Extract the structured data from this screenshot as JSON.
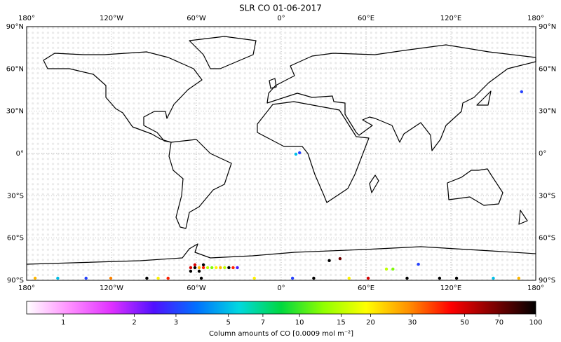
{
  "chart_data": {
    "type": "map",
    "title": "SLR CO 01-06-2017",
    "xlim": [
      -180,
      180
    ],
    "ylim": [
      -90,
      90
    ],
    "xticks": [
      {
        "value": -180,
        "label": "180°"
      },
      {
        "value": -120,
        "label": "120°W"
      },
      {
        "value": -60,
        "label": "60°W"
      },
      {
        "value": 0,
        "label": "0°"
      },
      {
        "value": 60,
        "label": "60°E"
      },
      {
        "value": 120,
        "label": "120°E"
      },
      {
        "value": 180,
        "label": "180°"
      }
    ],
    "yticks": [
      {
        "value": 90,
        "label": "90°N"
      },
      {
        "value": 60,
        "label": "60°N"
      },
      {
        "value": 30,
        "label": "30°N"
      },
      {
        "value": 0,
        "label": "0°"
      },
      {
        "value": -30,
        "label": "30°S"
      },
      {
        "value": -60,
        "label": "60°S"
      },
      {
        "value": -90,
        "label": "90°S"
      }
    ],
    "grid": true,
    "x": [
      -174,
      -158,
      -138,
      -120.5,
      -95,
      -87,
      -80,
      -56.5,
      -19,
      8,
      23,
      48,
      61.5,
      89,
      112,
      124,
      150,
      168,
      -64,
      -61,
      -58,
      -55,
      -52,
      -49,
      -46,
      -43,
      -40,
      -37,
      -34,
      -31,
      -64,
      -58,
      -61,
      -55,
      34,
      41.6,
      74.4,
      79,
      97,
      170,
      10.4,
      13
    ],
    "y": [
      -88.5,
      -88.5,
      -88.5,
      -88.5,
      -88.5,
      -88.5,
      -88.5,
      -88.5,
      -88.5,
      -88.5,
      -88.5,
      -88.5,
      -88.5,
      -88.5,
      -88.5,
      -88.5,
      -88.5,
      -88.5,
      -81,
      -81,
      -81,
      -81,
      -81,
      -81,
      -81,
      -81,
      -81,
      -81,
      -81,
      -81,
      -83.5,
      -83.5,
      -79,
      -79,
      -76,
      -74.6,
      -82,
      -82,
      -78.6,
      43.8,
      -0.5,
      0.5
    ],
    "values": [
      25,
      5,
      3,
      30,
      100,
      20,
      40,
      100,
      20,
      3,
      100,
      20,
      50,
      100,
      100,
      100,
      5,
      25,
      50,
      100,
      25,
      40,
      15,
      12,
      20,
      25,
      15,
      100,
      40,
      2.5,
      100,
      100,
      50,
      100,
      100,
      70,
      15,
      12,
      3,
      3,
      5,
      3
    ],
    "colorbar": {
      "label": "Column amounts of CO [0.0009 mol m⁻²]",
      "lim": [
        0.7,
        100
      ],
      "log": true,
      "ticks": [
        1,
        2,
        3,
        5,
        7,
        10,
        15,
        20,
        30,
        50,
        70,
        100
      ],
      "colors": [
        "#ffffff",
        "#ff90ff",
        "#e030ff",
        "#5010ff",
        "#0070ff",
        "#00d8e0",
        "#00d840",
        "#90ff00",
        "#ffff00",
        "#ff9000",
        "#ff0000",
        "#800000",
        "#000000"
      ]
    }
  }
}
